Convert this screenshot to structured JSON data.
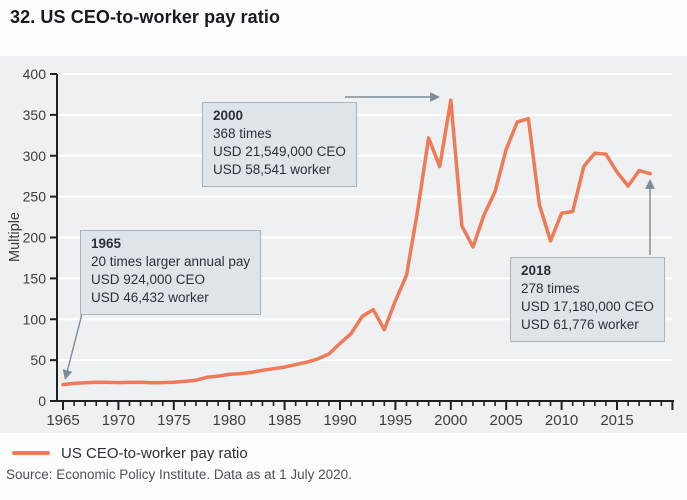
{
  "title": "32. US CEO-to-worker pay ratio",
  "legend": {
    "label": "US CEO-to-worker pay ratio"
  },
  "source": "Source: Economic Policy Institute. Data as at 1 July 2020.",
  "colors": {
    "line": "#ef7a58",
    "plot_bg": "#eef0f2",
    "grid": "#ffffff",
    "axis": "#1d2024",
    "tick_label": "#3a3e42",
    "annotation_bg": "#dfe4e8",
    "annotation_border": "#aab4bc",
    "arrow": "#7b8b97"
  },
  "annotations": [
    {
      "year": "1965",
      "lines": [
        "20 times larger annual pay",
        "USD 924,000 CEO",
        "USD 46,432 worker"
      ]
    },
    {
      "year": "2000",
      "lines": [
        "368 times",
        "USD 21,549,000 CEO",
        "USD 58,541 worker"
      ]
    },
    {
      "year": "2018",
      "lines": [
        "278 times",
        "USD 17,180,000 CEO",
        "USD 61,776 worker"
      ]
    }
  ],
  "chart_data": {
    "type": "line",
    "title": "32. US CEO-to-worker pay ratio",
    "xlabel": "",
    "ylabel": "Multiple",
    "ylim": [
      0,
      400
    ],
    "y_tick_step": 50,
    "y_ticks": [
      0,
      50,
      100,
      150,
      200,
      250,
      300,
      350,
      400
    ],
    "x_labeled_ticks": [
      1965,
      1970,
      1975,
      1980,
      1985,
      1990,
      1995,
      2000,
      2005,
      2010,
      2015
    ],
    "x_minor_tick_range": [
      1965,
      2020
    ],
    "grid": "horizontal",
    "legend_position": "bottom-left",
    "x": [
      1965,
      1966,
      1967,
      1968,
      1969,
      1970,
      1971,
      1972,
      1973,
      1974,
      1975,
      1976,
      1977,
      1978,
      1979,
      1980,
      1981,
      1982,
      1983,
      1984,
      1985,
      1986,
      1987,
      1988,
      1989,
      1990,
      1991,
      1992,
      1993,
      1994,
      1995,
      1996,
      1997,
      1998,
      1999,
      2000,
      2001,
      2002,
      2003,
      2004,
      2005,
      2006,
      2007,
      2008,
      2009,
      2010,
      2011,
      2012,
      2013,
      2014,
      2015,
      2016,
      2017,
      2018
    ],
    "series": [
      {
        "name": "US CEO-to-worker pay ratio",
        "values": [
          20.0,
          21.5,
          22.3,
          23.0,
          22.8,
          22.5,
          22.8,
          23.0,
          22.3,
          22.5,
          23.0,
          24.0,
          25.5,
          29.0,
          30.5,
          32.5,
          33.5,
          35.0,
          37.5,
          39.5,
          41.5,
          44.5,
          47.5,
          51.5,
          57.5,
          70.5,
          82.5,
          103.5,
          111.8,
          87.3,
          122.6,
          153.8,
          232.8,
          321.8,
          286.7,
          368.0,
          214.2,
          188.5,
          227.5,
          256.3,
          308.0,
          341.4,
          345.3,
          240.0,
          195.8,
          229.7,
          231.8,
          287.0,
          303.0,
          302.0,
          280.0,
          263.0,
          282.0,
          278.1
        ]
      }
    ]
  }
}
